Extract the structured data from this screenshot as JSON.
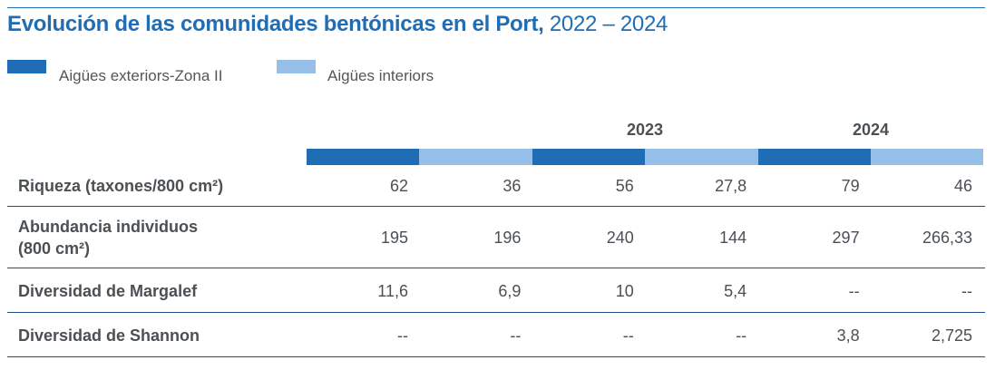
{
  "title": {
    "bold": "Evolución de las comunidades bentónicas en el Port,",
    "years": " 2022 – 2024"
  },
  "colors": {
    "exterior": "#1f6db5",
    "interior": "#95bfe8"
  },
  "legend": [
    {
      "label": "Aigües exteriors-Zona II"
    },
    {
      "label": "Aigües interiors"
    }
  ],
  "years": [
    "",
    "2023",
    "2024"
  ],
  "rows": [
    {
      "label": "Riqueza (taxones/800 cm²)",
      "values": [
        "62",
        "36",
        "56",
        "27,8",
        "79",
        "46"
      ]
    },
    {
      "label": "Abundancia individuos\n(800 cm²)",
      "values": [
        "195",
        "196",
        "240",
        "144",
        "297",
        "266,33"
      ]
    },
    {
      "label": "Diversidad de Margalef",
      "values": [
        "11,6",
        "6,9",
        "10",
        "5,4",
        "--",
        "--"
      ]
    },
    {
      "label": "Diversidad de Shannon",
      "values": [
        "--",
        "--",
        "--",
        "--",
        "3,8",
        "2,725"
      ]
    }
  ]
}
